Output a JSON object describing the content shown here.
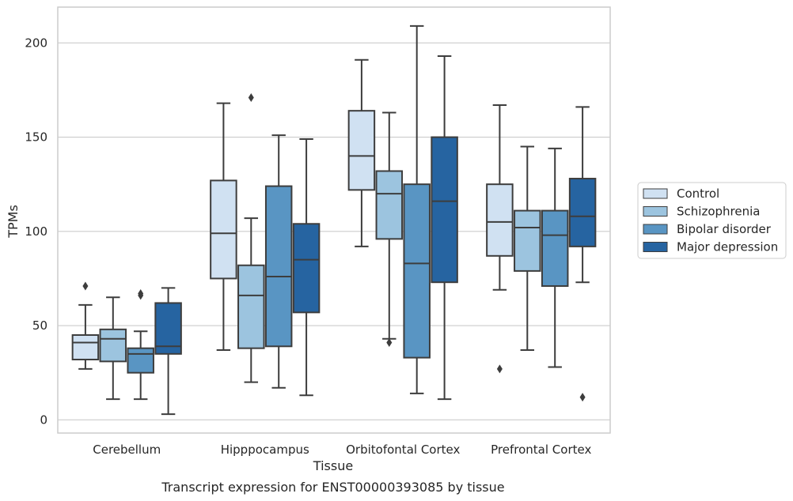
{
  "chart_data": {
    "type": "boxplot",
    "caption": "Transcript expression for ENST00000393085 by tissue",
    "xlabel": "Tissue",
    "ylabel": "TPMs",
    "ylim": [
      -7,
      219
    ],
    "yticks": [
      0,
      50,
      100,
      150,
      200
    ],
    "grid": "horizontal",
    "legend_position": "right",
    "categories": [
      "Cerebellum",
      "Hipppocampus",
      "Orbitofontal Cortex",
      "Prefrontal Cortex"
    ],
    "series": [
      {
        "name": "Control",
        "color": "#d0e1f2",
        "boxes": [
          {
            "whisker_low": 27,
            "q1": 32,
            "median": 41,
            "q3": 45,
            "whisker_high": 61,
            "outliers": [
              71
            ]
          },
          {
            "whisker_low": 37,
            "q1": 75,
            "median": 99,
            "q3": 127,
            "whisker_high": 168,
            "outliers": []
          },
          {
            "whisker_low": 92,
            "q1": 122,
            "median": 140,
            "q3": 164,
            "whisker_high": 191,
            "outliers": []
          },
          {
            "whisker_low": 69,
            "q1": 87,
            "median": 105,
            "q3": 125,
            "whisker_high": 167,
            "outliers": [
              27
            ]
          }
        ]
      },
      {
        "name": "Schizophrenia",
        "color": "#9cc4df",
        "boxes": [
          {
            "whisker_low": 11,
            "q1": 31,
            "median": 43,
            "q3": 48,
            "whisker_high": 65,
            "outliers": []
          },
          {
            "whisker_low": 20,
            "q1": 38,
            "median": 66,
            "q3": 82,
            "whisker_high": 107,
            "outliers": [
              171
            ]
          },
          {
            "whisker_low": 43,
            "q1": 96,
            "median": 120,
            "q3": 132,
            "whisker_high": 163,
            "outliers": [
              41
            ]
          },
          {
            "whisker_low": 37,
            "q1": 79,
            "median": 102,
            "q3": 111,
            "whisker_high": 145,
            "outliers": []
          }
        ]
      },
      {
        "name": "Bipolar disorder",
        "color": "#5995c3",
        "boxes": [
          {
            "whisker_low": 11,
            "q1": 25,
            "median": 35,
            "q3": 38,
            "whisker_high": 47,
            "outliers": [
              66,
              67
            ]
          },
          {
            "whisker_low": 17,
            "q1": 39,
            "median": 76,
            "q3": 124,
            "whisker_high": 151,
            "outliers": []
          },
          {
            "whisker_low": 14,
            "q1": 33,
            "median": 83,
            "q3": 125,
            "whisker_high": 209,
            "outliers": []
          },
          {
            "whisker_low": 28,
            "q1": 71,
            "median": 98,
            "q3": 111,
            "whisker_high": 144,
            "outliers": []
          }
        ]
      },
      {
        "name": "Major depression",
        "color": "#2664a1",
        "boxes": [
          {
            "whisker_low": 3,
            "q1": 35,
            "median": 39,
            "q3": 62,
            "whisker_high": 70,
            "outliers": []
          },
          {
            "whisker_low": 13,
            "q1": 57,
            "median": 85,
            "q3": 104,
            "whisker_high": 149,
            "outliers": []
          },
          {
            "whisker_low": 11,
            "q1": 73,
            "median": 116,
            "q3": 150,
            "whisker_high": 193,
            "outliers": []
          },
          {
            "whisker_low": 73,
            "q1": 92,
            "median": 108,
            "q3": 128,
            "whisker_high": 166,
            "outliers": [
              12
            ]
          }
        ]
      }
    ]
  }
}
